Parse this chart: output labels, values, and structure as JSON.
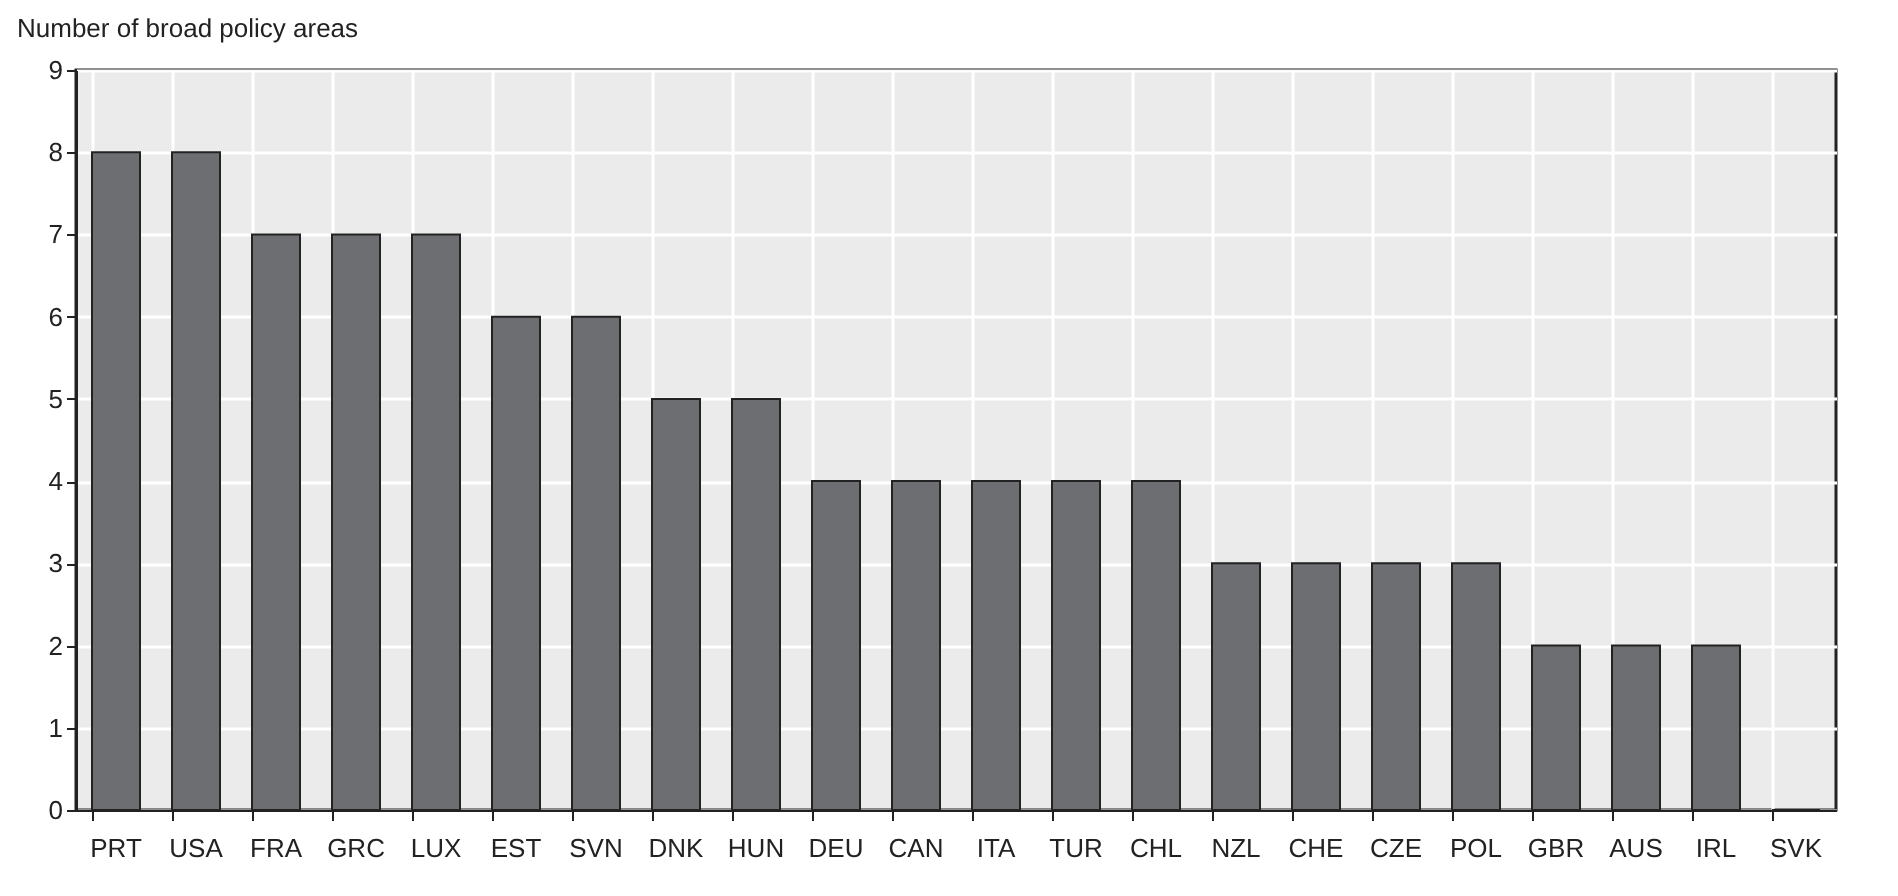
{
  "chart_data": {
    "type": "bar",
    "ylabel": "Number of broad policy areas",
    "categories": [
      "PRT",
      "USA",
      "FRA",
      "GRC",
      "LUX",
      "EST",
      "SVN",
      "DNK",
      "HUN",
      "DEU",
      "CAN",
      "ITA",
      "TUR",
      "CHL",
      "NZL",
      "CHE",
      "CZE",
      "POL",
      "GBR",
      "AUS",
      "IRL",
      "SVK"
    ],
    "values": [
      8,
      8,
      7,
      7,
      7,
      6,
      6,
      5,
      5,
      4,
      4,
      4,
      4,
      4,
      3,
      3,
      3,
      3,
      2,
      2,
      2,
      0
    ],
    "color": "#6d6e72",
    "ylim": [
      0,
      9
    ],
    "yticks": [
      0,
      1,
      2,
      3,
      4,
      5,
      6,
      7,
      8,
      9
    ],
    "grid": true
  }
}
